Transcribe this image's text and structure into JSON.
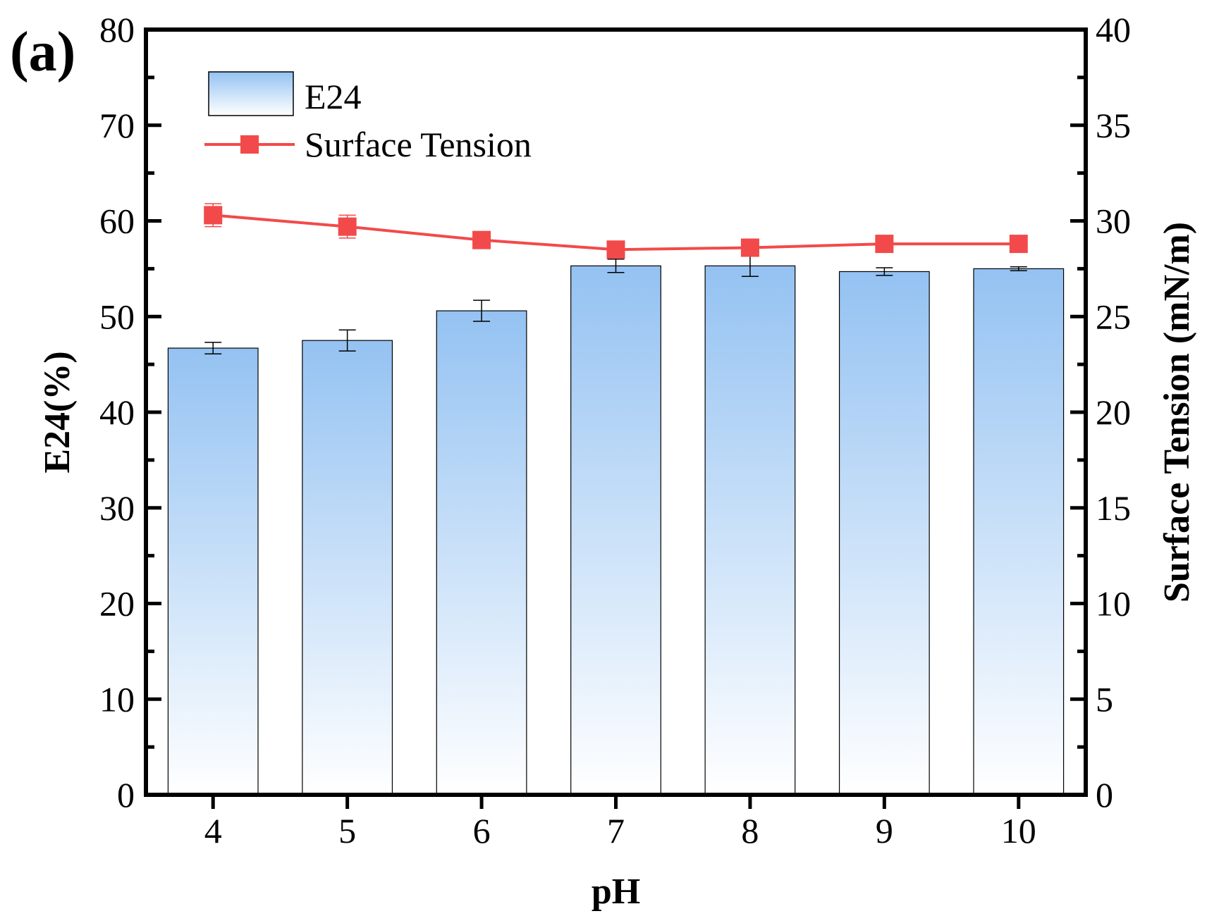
{
  "panel_label": "(a)",
  "chart_data": {
    "type": "bar",
    "categories": [
      "4",
      "5",
      "6",
      "7",
      "8",
      "9",
      "10"
    ],
    "xlabel": "pH",
    "ylabel": "E24(%)",
    "y2label": "Surface Tension (mN/m)",
    "ylim": [
      0,
      80
    ],
    "y2lim": [
      0,
      40
    ],
    "yticks": [
      "0",
      "10",
      "20",
      "30",
      "40",
      "50",
      "60",
      "70",
      "80"
    ],
    "y2ticks": [
      "0",
      "5",
      "10",
      "15",
      "20",
      "25",
      "30",
      "35",
      "40"
    ],
    "grid": false,
    "legend_position": "top-left",
    "series": [
      {
        "name": "E24",
        "type": "bar",
        "axis": "left",
        "color_top": "#94c2f2",
        "color_bottom": "#ffffff",
        "values": [
          46.7,
          47.5,
          50.6,
          55.3,
          55.3,
          54.7,
          55.0
        ],
        "errors": [
          0.6,
          1.1,
          1.1,
          0.7,
          1.1,
          0.4,
          0.2
        ]
      },
      {
        "name": "Surface Tension",
        "type": "line",
        "axis": "right",
        "color": "#f24a4a",
        "values": [
          30.3,
          29.7,
          29.0,
          28.5,
          28.6,
          28.8,
          28.8
        ],
        "errors": [
          0.6,
          0.6,
          0.3,
          0.3,
          0.3,
          0.3,
          0.2
        ]
      }
    ]
  }
}
